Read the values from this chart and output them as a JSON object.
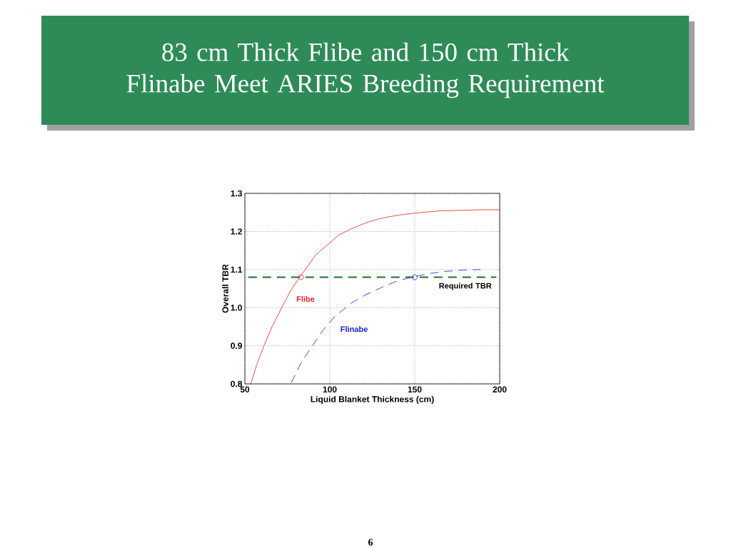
{
  "chart_data": {
    "type": "line",
    "title": "83 cm Thick Flibe and 150 cm Thick Flinabe Meet ARIES Breeding Requirement",
    "xlabel": "Liquid Blanket Thickness (cm)",
    "ylabel": "Overall TBR",
    "xlim": [
      50,
      200
    ],
    "xticks": [
      50,
      100,
      150,
      200
    ],
    "ylim": [
      0.8,
      1.3
    ],
    "yticks": [
      {
        "value": 0.8,
        "label": "0.8"
      },
      {
        "value": 0.9,
        "label": "0.9"
      },
      {
        "value": 1.0,
        "label": "1.0"
      },
      {
        "value": 1.1,
        "label": "1.1"
      },
      {
        "value": 1.2,
        "label": "1.2"
      },
      {
        "value": 1.3,
        "label": "1.3"
      }
    ],
    "grid": true,
    "series": [
      {
        "name": "Flibe",
        "color": "#dd2222",
        "line_style": "solid",
        "marker": "none",
        "x": [
          53.5,
          57,
          61.2,
          66,
          71.7,
          77,
          82.2,
          86.4,
          92,
          100,
          105,
          111.6,
          117,
          122.8,
          128,
          134,
          142,
          150.1,
          157,
          164.8,
          188.7,
          200
        ],
        "values": [
          0.8,
          0.85,
          0.9,
          0.95,
          1.0,
          1.045,
          1.08,
          1.105,
          1.14,
          1.17,
          1.19,
          1.205,
          1.215,
          1.225,
          1.232,
          1.238,
          1.244,
          1.248,
          1.251,
          1.254,
          1.257,
          1.257
        ]
      },
      {
        "name": "Flinabe",
        "color": "#1a1acc",
        "line_style": "dashed",
        "marker": "none",
        "x": [
          77.3,
          82.9,
          88.1,
          96.2,
          102.5,
          113,
          120.7,
          132,
          139.6,
          150.1,
          159.2,
          167.6,
          178.9,
          188.7
        ],
        "values": [
          0.803,
          0.854,
          0.889,
          0.942,
          0.975,
          1.013,
          1.033,
          1.056,
          1.07,
          1.082,
          1.09,
          1.095,
          1.099,
          1.1
        ]
      },
      {
        "type": "scatter",
        "marker": "circle",
        "colors": [
          "#dd2222",
          "#1a1acc"
        ],
        "x": [
          83,
          150
        ],
        "values": [
          1.08,
          1.08
        ]
      }
    ],
    "ref_lines": [
      {
        "axis": "y",
        "value": 1.08,
        "label": "Required TBR",
        "color": "#1f6f2a",
        "line_style": "dashed"
      }
    ],
    "annotations": [
      "6"
    ]
  }
}
